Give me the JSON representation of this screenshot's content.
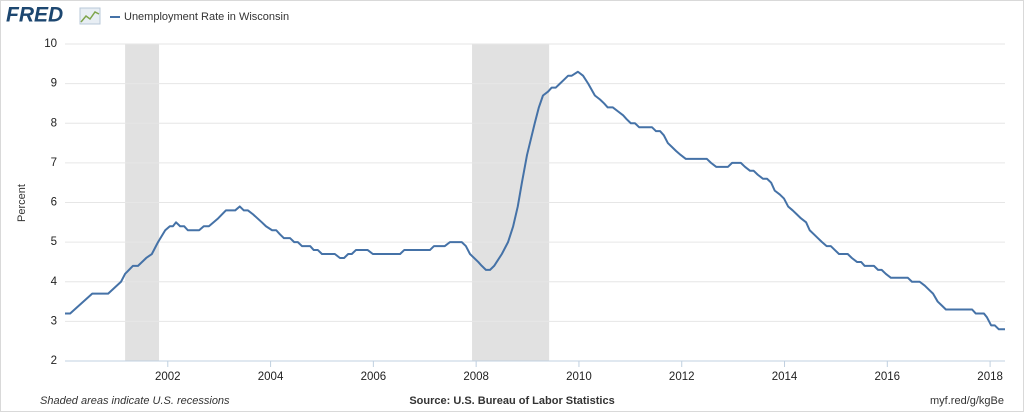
{
  "logo": "FRED",
  "chart_data": {
    "type": "line",
    "title": "Unemployment Rate in Wisconsin",
    "y_label": "Percent",
    "footer_left": "Shaded areas indicate U.S. recessions",
    "footer_center": "Source: U.S. Bureau of Labor Statistics",
    "footer_right": "myf.red/g/kgBe",
    "xlim": [
      2000,
      2018.29
    ],
    "xticks": [
      2002,
      2004,
      2006,
      2008,
      2010,
      2012,
      2014,
      2016,
      2018
    ],
    "ylim": [
      2,
      10
    ],
    "yticks": [
      2,
      3,
      4,
      5,
      6,
      7,
      8,
      9,
      10
    ],
    "grid": true,
    "recession_color": "#e1e1e1",
    "recessions": [
      [
        2001.17,
        2001.83
      ],
      [
        2007.92,
        2009.42
      ]
    ],
    "x": [
      2000.0,
      2000.1,
      2000.53,
      2000.84,
      2001.09,
      2001.17,
      2001.32,
      2001.42,
      2001.58,
      2001.69,
      2001.81,
      2001.95,
      2002.04,
      2002.1,
      2002.16,
      2002.24,
      2002.32,
      2002.39,
      2002.61,
      2002.7,
      2002.8,
      2002.98,
      2003.13,
      2003.31,
      2003.4,
      2003.48,
      2003.56,
      2003.66,
      2003.83,
      2003.91,
      2004.03,
      2004.11,
      2004.18,
      2004.26,
      2004.38,
      2004.46,
      2004.53,
      2004.61,
      2004.77,
      2004.84,
      2004.92,
      2005.0,
      2005.25,
      2005.35,
      2005.43,
      2005.51,
      2005.58,
      2005.66,
      2005.89,
      2005.99,
      2006.52,
      2006.6,
      2007.1,
      2007.18,
      2007.39,
      2007.49,
      2007.72,
      2007.8,
      2007.88,
      2008.04,
      2008.11,
      2008.19,
      2008.27,
      2008.35,
      2008.4,
      2008.5,
      2008.62,
      2008.72,
      2008.81,
      2008.89,
      2008.99,
      2009.14,
      2009.22,
      2009.3,
      2009.4,
      2009.47,
      2009.55,
      2009.63,
      2009.71,
      2009.79,
      2009.86,
      2009.98,
      2010.08,
      2010.18,
      2010.31,
      2010.41,
      2010.49,
      2010.56,
      2010.66,
      2010.76,
      2010.86,
      2010.93,
      2011.01,
      2011.09,
      2011.17,
      2011.42,
      2011.5,
      2011.58,
      2011.65,
      2011.73,
      2011.81,
      2011.89,
      2011.98,
      2012.08,
      2012.49,
      2012.57,
      2012.67,
      2012.9,
      2012.98,
      2013.15,
      2013.23,
      2013.33,
      2013.4,
      2013.48,
      2013.58,
      2013.66,
      2013.74,
      2013.81,
      2013.91,
      2013.99,
      2014.07,
      2014.16,
      2014.24,
      2014.32,
      2014.42,
      2014.49,
      2014.57,
      2014.65,
      2014.73,
      2014.82,
      2014.9,
      2014.98,
      2015.06,
      2015.23,
      2015.31,
      2015.41,
      2015.49,
      2015.56,
      2015.74,
      2015.82,
      2015.89,
      2015.97,
      2016.07,
      2016.4,
      2016.48,
      2016.63,
      2016.73,
      2016.81,
      2016.89,
      2016.98,
      2017.06,
      2017.14,
      2017.65,
      2017.72,
      2017.88,
      2017.94,
      2018.02,
      2018.09,
      2018.17,
      2018.29
    ],
    "series": [
      {
        "name": "Unemployment Rate in Wisconsin",
        "color": "#4572a7",
        "values": [
          3.2,
          3.2,
          3.7,
          3.7,
          4.0,
          4.2,
          4.4,
          4.4,
          4.6,
          4.7,
          5.0,
          5.3,
          5.4,
          5.4,
          5.5,
          5.4,
          5.4,
          5.3,
          5.3,
          5.4,
          5.4,
          5.6,
          5.8,
          5.8,
          5.9,
          5.8,
          5.8,
          5.7,
          5.5,
          5.4,
          5.3,
          5.3,
          5.2,
          5.1,
          5.1,
          5.0,
          5.0,
          4.9,
          4.9,
          4.8,
          4.8,
          4.7,
          4.7,
          4.6,
          4.6,
          4.7,
          4.7,
          4.8,
          4.8,
          4.7,
          4.7,
          4.8,
          4.8,
          4.9,
          4.9,
          5.0,
          5.0,
          4.9,
          4.7,
          4.5,
          4.4,
          4.3,
          4.3,
          4.4,
          4.5,
          4.7,
          5.0,
          5.4,
          5.9,
          6.5,
          7.2,
          8.0,
          8.4,
          8.7,
          8.8,
          8.9,
          8.9,
          9.0,
          9.1,
          9.2,
          9.2,
          9.3,
          9.2,
          9.0,
          8.7,
          8.6,
          8.5,
          8.4,
          8.4,
          8.3,
          8.2,
          8.1,
          8.0,
          8.0,
          7.9,
          7.9,
          7.8,
          7.8,
          7.7,
          7.5,
          7.4,
          7.3,
          7.2,
          7.1,
          7.1,
          7.0,
          6.9,
          6.9,
          7.0,
          7.0,
          6.9,
          6.8,
          6.8,
          6.7,
          6.6,
          6.6,
          6.5,
          6.3,
          6.2,
          6.1,
          5.9,
          5.8,
          5.7,
          5.6,
          5.5,
          5.3,
          5.2,
          5.1,
          5.0,
          4.9,
          4.9,
          4.8,
          4.7,
          4.7,
          4.6,
          4.5,
          4.5,
          4.4,
          4.4,
          4.3,
          4.3,
          4.2,
          4.1,
          4.1,
          4.0,
          4.0,
          3.9,
          3.8,
          3.7,
          3.5,
          3.4,
          3.3,
          3.3,
          3.2,
          3.2,
          3.1,
          2.9,
          2.9,
          2.8,
          2.8
        ]
      }
    ]
  }
}
